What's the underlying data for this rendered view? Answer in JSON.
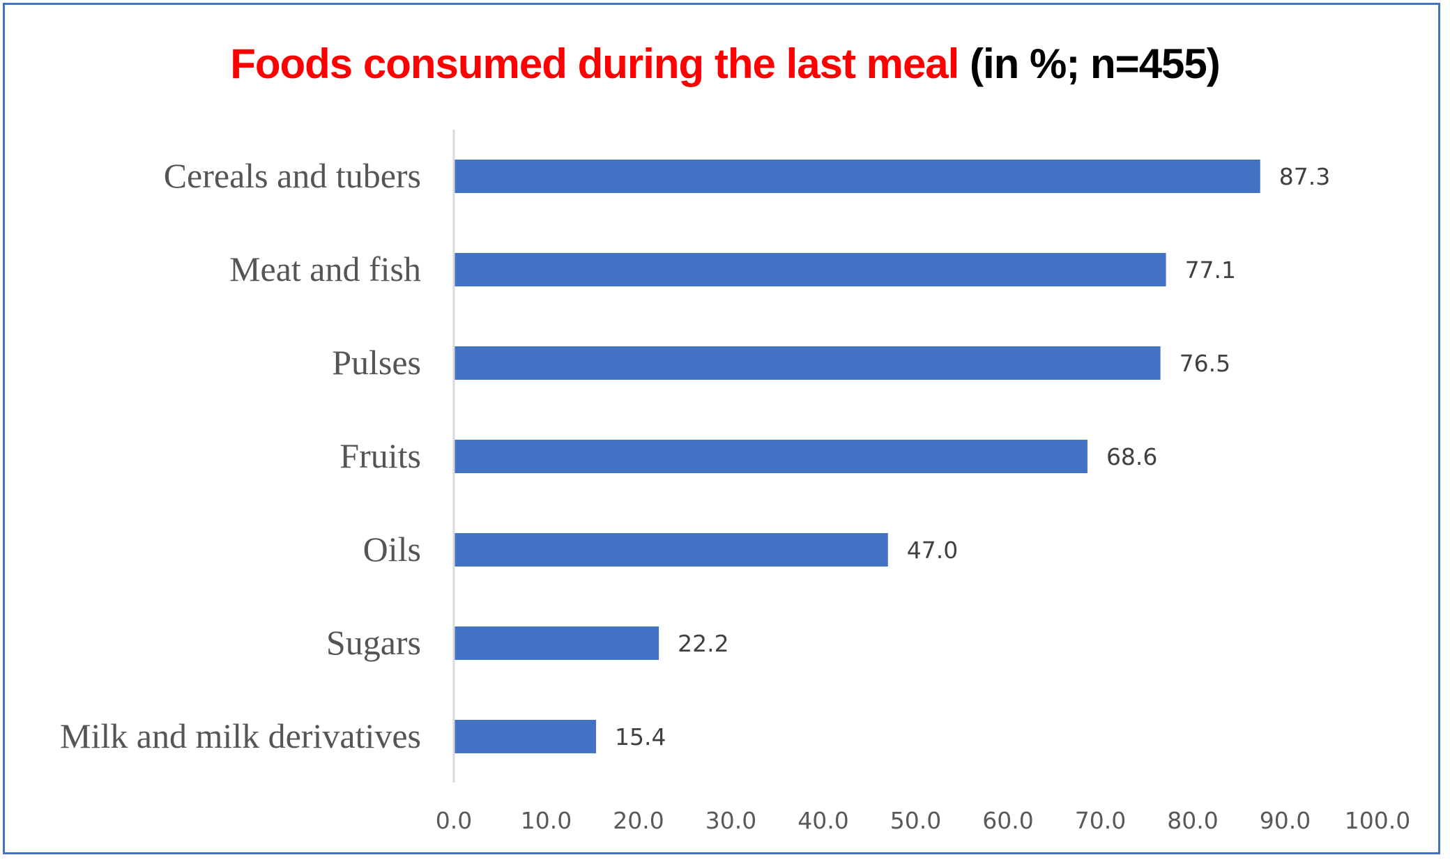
{
  "chart_data": {
    "type": "bar",
    "orientation": "horizontal",
    "title": "Foods consumed during the last meal (in %; n=455)",
    "title_parts": {
      "main": "Foods consumed during the last meal",
      "suffix": "(in %; n=455)"
    },
    "categories": [
      "Cereals and tubers",
      "Meat and fish",
      "Pulses",
      "Fruits",
      "Oils",
      "Sugars",
      "Milk and milk derivatives"
    ],
    "values": [
      87.3,
      77.1,
      76.5,
      68.6,
      47.0,
      22.2,
      15.4
    ],
    "value_labels": [
      "87.3",
      "77.1",
      "76.5",
      "68.6",
      "47.0",
      "22.2",
      "15.4"
    ],
    "xlabel": "",
    "ylabel": "",
    "xlim": [
      0,
      100
    ],
    "x_ticks": [
      0,
      10,
      20,
      30,
      40,
      50,
      60,
      70,
      80,
      90,
      100
    ],
    "x_tick_labels": [
      "0.0",
      "10.0",
      "20.0",
      "30.0",
      "40.0",
      "50.0",
      "60.0",
      "70.0",
      "80.0",
      "90.0",
      "100.0"
    ],
    "grid": false,
    "legend": "none",
    "colors": {
      "bar": "#4472c4",
      "title_main": "#ff0000",
      "title_suffix": "#000000",
      "border": "#4472c4",
      "axis_line": "#d9d9d9"
    }
  }
}
